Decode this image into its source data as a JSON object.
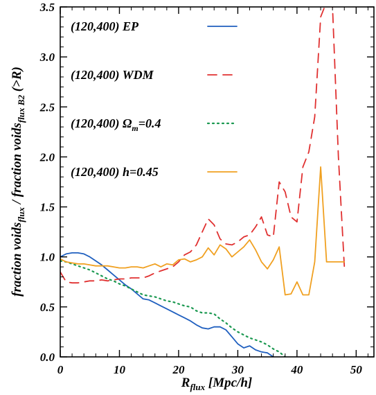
{
  "chart_data": {
    "type": "line",
    "title": "",
    "xlabel": "R",
    "xlabel_sub": "flux",
    "xlabel_tail": " [Mpc/h]",
    "ylabel": [
      {
        "t": "fraction voids"
      },
      {
        "t": "flux",
        "sub": true
      },
      {
        "t": " / fraction voids"
      },
      {
        "t": "flux B2",
        "sub": true
      },
      {
        "t": " (>R)"
      }
    ],
    "xlim": [
      0,
      53
    ],
    "ylim": [
      0,
      3.5
    ],
    "xticks": [
      "0",
      "10",
      "20",
      "30",
      "40",
      "50"
    ],
    "xtick_values": [
      0,
      10,
      20,
      30,
      40,
      50
    ],
    "yticks": [
      "0.0",
      "0.5",
      "1.0",
      "1.5",
      "2.0",
      "2.5",
      "3.0",
      "3.5"
    ],
    "ytick_values": [
      0,
      0.5,
      1.0,
      1.5,
      2.0,
      2.5,
      3.0,
      3.5
    ],
    "grid": false,
    "legend_position": "top-left",
    "series": [
      {
        "name": "(120,400) EP",
        "label_parts": [
          {
            "t": "(120,400) EP"
          }
        ],
        "color": "#1f5fbf",
        "dash": "solid",
        "x": [
          0,
          1,
          2,
          3,
          4,
          5,
          6,
          7,
          8,
          9,
          10,
          11,
          12,
          13,
          14,
          15,
          16,
          17,
          18,
          19,
          20,
          21,
          22,
          23,
          24,
          25,
          26,
          27,
          28,
          29,
          30,
          31,
          32,
          33,
          34,
          35,
          36,
          37
        ],
        "y": [
          1.0,
          1.03,
          1.04,
          1.04,
          1.03,
          1.0,
          0.96,
          0.92,
          0.87,
          0.82,
          0.77,
          0.72,
          0.68,
          0.63,
          0.58,
          0.57,
          0.54,
          0.51,
          0.48,
          0.45,
          0.42,
          0.39,
          0.36,
          0.32,
          0.29,
          0.28,
          0.3,
          0.3,
          0.27,
          0.2,
          0.13,
          0.09,
          0.11,
          0.07,
          0.05,
          0.04,
          0.0,
          -0.05
        ]
      },
      {
        "name": "(120,400) WDM",
        "label_parts": [
          {
            "t": "(120,400) WDM"
          }
        ],
        "color": "#e03030",
        "dash": "dashed",
        "x": [
          0,
          1,
          2,
          3,
          4,
          5,
          6,
          7,
          8,
          9,
          10,
          11,
          12,
          13,
          14,
          15,
          16,
          17,
          18,
          19,
          20,
          21,
          22,
          23,
          24,
          25,
          26,
          27,
          28,
          29,
          30,
          31,
          32,
          33,
          34,
          35,
          36,
          37,
          38,
          39,
          40,
          41,
          42,
          43,
          44,
          45,
          46,
          47,
          48
        ],
        "y": [
          0.85,
          0.75,
          0.74,
          0.74,
          0.75,
          0.76,
          0.76,
          0.77,
          0.76,
          0.77,
          0.78,
          0.78,
          0.79,
          0.79,
          0.79,
          0.81,
          0.84,
          0.86,
          0.88,
          0.9,
          0.95,
          1.02,
          1.05,
          1.12,
          1.25,
          1.38,
          1.32,
          1.18,
          1.13,
          1.12,
          1.15,
          1.2,
          1.22,
          1.3,
          1.4,
          1.22,
          1.2,
          1.75,
          1.65,
          1.4,
          1.35,
          1.9,
          2.05,
          2.4,
          3.4,
          3.55,
          3.5,
          2.0,
          0.9
        ]
      },
      {
        "name": "(120,400) Ωm=0.4",
        "label_parts": [
          {
            "t": "(120,400) Ω"
          },
          {
            "t": "m",
            "sub": true
          },
          {
            "t": "=0.4"
          }
        ],
        "color": "#1a9850",
        "dash": "dotted",
        "x": [
          0,
          1,
          2,
          3,
          4,
          5,
          6,
          7,
          8,
          9,
          10,
          11,
          12,
          13,
          14,
          15,
          16,
          17,
          18,
          19,
          20,
          21,
          22,
          23,
          24,
          25,
          26,
          27,
          28,
          29,
          30,
          31,
          32,
          33,
          34,
          35,
          36,
          37,
          38
        ],
        "y": [
          0.96,
          0.95,
          0.93,
          0.91,
          0.89,
          0.87,
          0.84,
          0.81,
          0.78,
          0.76,
          0.73,
          0.71,
          0.68,
          0.65,
          0.62,
          0.61,
          0.6,
          0.58,
          0.56,
          0.55,
          0.53,
          0.51,
          0.5,
          0.46,
          0.44,
          0.44,
          0.43,
          0.38,
          0.34,
          0.29,
          0.25,
          0.22,
          0.19,
          0.17,
          0.15,
          0.12,
          0.08,
          0.05,
          0.0
        ]
      },
      {
        "name": "(120,400) h=0.45",
        "label_parts": [
          {
            "t": "(120,400) h=0.45"
          }
        ],
        "color": "#f0a020",
        "dash": "solid",
        "x": [
          0,
          1,
          2,
          3,
          4,
          5,
          6,
          7,
          8,
          9,
          10,
          11,
          12,
          13,
          14,
          15,
          16,
          17,
          18,
          19,
          20,
          21,
          22,
          23,
          24,
          25,
          26,
          27,
          28,
          29,
          30,
          31,
          32,
          33,
          34,
          35,
          36,
          37,
          38,
          39,
          40,
          41,
          42,
          43,
          44,
          45,
          46,
          47,
          48
        ],
        "y": [
          0.98,
          0.95,
          0.94,
          0.93,
          0.93,
          0.92,
          0.91,
          0.91,
          0.91,
          0.9,
          0.89,
          0.89,
          0.9,
          0.9,
          0.89,
          0.91,
          0.93,
          0.9,
          0.93,
          0.92,
          0.97,
          0.98,
          0.95,
          0.97,
          1.0,
          1.09,
          1.02,
          1.12,
          1.08,
          1.0,
          1.05,
          1.1,
          1.17,
          1.07,
          0.95,
          0.88,
          0.97,
          1.1,
          0.62,
          0.63,
          0.75,
          0.62,
          0.62,
          0.95,
          1.9,
          0.95,
          0.95,
          0.95,
          0.95
        ]
      }
    ]
  }
}
